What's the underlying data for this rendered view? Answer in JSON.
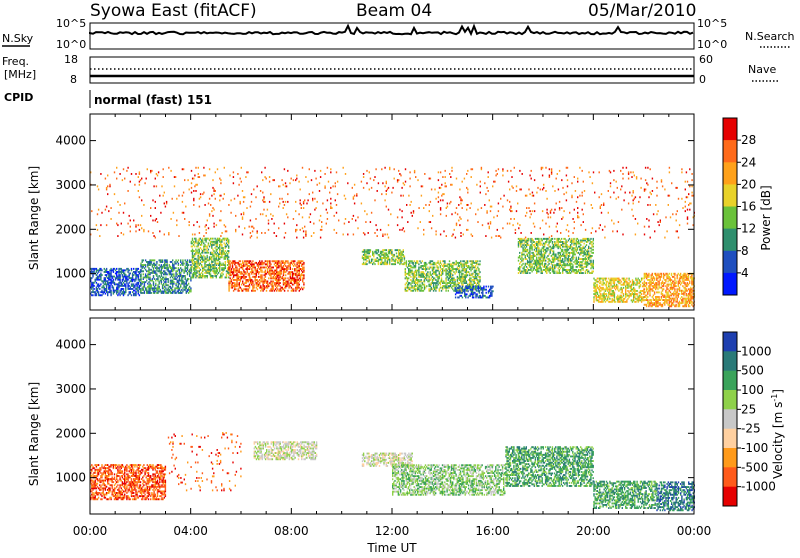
{
  "header": {
    "station": "Syowa East (fitACF)",
    "beam": "Beam 04",
    "date": "05/Mar/2010"
  },
  "strip_panels": {
    "noise": {
      "left_label": "N.Sky",
      "right_label": "N.Search",
      "left_ticks": [
        "10^5",
        "10^0"
      ],
      "right_ticks": [
        "10^5",
        "10^0"
      ]
    },
    "freq": {
      "left_label_1": "Freq.",
      "left_label_2": "[MHz]",
      "right_label": "Nave",
      "left_ticks": [
        "18",
        "8"
      ],
      "right_ticks": [
        "60",
        "0"
      ]
    },
    "cpid": {
      "label": "CPID",
      "value": "normal (fast) 151"
    }
  },
  "x_axis": {
    "label": "Time UT",
    "ticks": [
      "00:00",
      "04:00",
      "08:00",
      "12:00",
      "16:00",
      "20:00",
      "00:00"
    ]
  },
  "chart_data": [
    {
      "type": "heatmap",
      "title": "",
      "xlabel": "Time UT",
      "ylabel": "Slant Range [km]",
      "xlim": [
        0,
        24
      ],
      "ylim": [
        180,
        4600
      ],
      "yticks": [
        1000,
        2000,
        3000,
        4000
      ],
      "colorbar": {
        "label": "Power [dB]",
        "ticks": [
          "28",
          "24",
          "20",
          "16",
          "12",
          "8",
          "4"
        ],
        "colors": [
          "#e60000",
          "#ff6a1a",
          "#ffa11a",
          "#e8d22a",
          "#6ac23a",
          "#2f8f6e",
          "#1f4fbf",
          "#0018ff"
        ]
      },
      "regions": [
        {
          "t": [
            0.0,
            2.0
          ],
          "r": [
            500,
            1100
          ],
          "level": 6
        },
        {
          "t": [
            2.0,
            4.0
          ],
          "r": [
            550,
            1300
          ],
          "level": 5
        },
        {
          "t": [
            4.0,
            5.5
          ],
          "r": [
            900,
            1800
          ],
          "level": 4
        },
        {
          "t": [
            5.5,
            8.5
          ],
          "r": [
            600,
            1300
          ],
          "level": 1
        },
        {
          "t": [
            10.8,
            12.5
          ],
          "r": [
            1200,
            1550
          ],
          "level": 4
        },
        {
          "t": [
            12.5,
            15.5
          ],
          "r": [
            600,
            1300
          ],
          "level": 4
        },
        {
          "t": [
            14.5,
            16.0
          ],
          "r": [
            450,
            700
          ],
          "level": 6
        },
        {
          "t": [
            17.0,
            20.0
          ],
          "r": [
            1000,
            1800
          ],
          "level": 4
        },
        {
          "t": [
            20.0,
            22.0
          ],
          "r": [
            350,
            900
          ],
          "level": 3
        },
        {
          "t": [
            22.0,
            24.0
          ],
          "r": [
            250,
            1000
          ],
          "level": 2
        },
        {
          "t": [
            0.0,
            24.0
          ],
          "r": [
            1800,
            3400
          ],
          "level": 1
        }
      ]
    },
    {
      "type": "heatmap",
      "title": "",
      "xlabel": "Time UT",
      "ylabel": "Slant Range [km]",
      "xlim": [
        0,
        24
      ],
      "ylim": [
        180,
        4600
      ],
      "yticks": [
        1000,
        2000,
        3000,
        4000
      ],
      "colorbar": {
        "label": "Velocity [m s^-1]",
        "ticks": [
          "1000",
          "500",
          "100",
          "25",
          "-25",
          "-100",
          "-500",
          "-1000"
        ],
        "colors": [
          "#1e3fb0",
          "#2a7a78",
          "#3aa35a",
          "#8fd14a",
          "#c8c8c8",
          "#ffd0a0",
          "#ff9a1a",
          "#ff5a1a",
          "#e60000"
        ]
      },
      "regions": [
        {
          "t": [
            0.0,
            3.0
          ],
          "r": [
            500,
            1300
          ],
          "level": 7
        },
        {
          "t": [
            3.0,
            6.0
          ],
          "r": [
            700,
            2000
          ],
          "level": 7
        },
        {
          "t": [
            6.5,
            9.0
          ],
          "r": [
            1400,
            1800
          ],
          "level": 4
        },
        {
          "t": [
            10.8,
            12.8
          ],
          "r": [
            1250,
            1550
          ],
          "level": 4
        },
        {
          "t": [
            12.0,
            16.5
          ],
          "r": [
            600,
            1300
          ],
          "level": 3
        },
        {
          "t": [
            16.5,
            20.0
          ],
          "r": [
            800,
            1700
          ],
          "level": 2
        },
        {
          "t": [
            20.0,
            22.5
          ],
          "r": [
            300,
            900
          ],
          "level": 2
        },
        {
          "t": [
            22.5,
            24.0
          ],
          "r": [
            250,
            900
          ],
          "level": 1
        }
      ]
    }
  ]
}
